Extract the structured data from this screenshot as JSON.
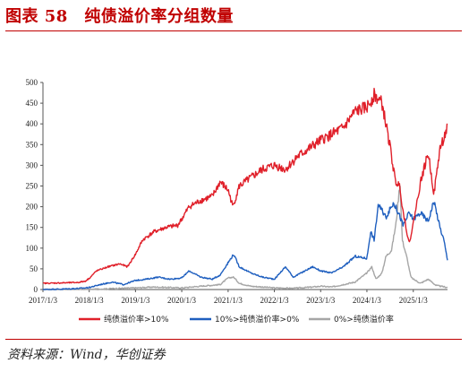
{
  "figure": {
    "title": "图表 58　纯债溢价率分组数量",
    "source": "资料来源：Wind，华创证券"
  },
  "chart_data": {
    "type": "line",
    "title": "",
    "xlabel": "",
    "ylabel": "",
    "ylim": [
      0,
      500
    ],
    "yticks": [
      "0",
      "50",
      "100",
      "150",
      "200",
      "250",
      "300",
      "350",
      "400",
      "450",
      "500"
    ],
    "xlim": [
      "2017-01-03",
      "2025-09-30"
    ],
    "xticks": [
      "2017/1/3",
      "2018/1/3",
      "2019/1/3",
      "2020/1/3",
      "2021/1/3",
      "2022/1/3",
      "2023/1/3",
      "2024/1/3",
      "2025/1/3"
    ],
    "legend_position": "bottom",
    "grid": false,
    "series": [
      {
        "name": "纯债溢价率>10%",
        "color": "#e0202a",
        "points": [
          [
            "2017-01-03",
            15
          ],
          [
            "2017-06-01",
            16
          ],
          [
            "2017-10-01",
            17
          ],
          [
            "2017-12-01",
            20
          ],
          [
            "2018-01-03",
            27
          ],
          [
            "2018-03-01",
            45
          ],
          [
            "2018-06-01",
            55
          ],
          [
            "2018-09-01",
            62
          ],
          [
            "2018-11-01",
            55
          ],
          [
            "2019-01-03",
            85
          ],
          [
            "2019-03-01",
            120
          ],
          [
            "2019-06-01",
            140
          ],
          [
            "2019-09-01",
            150
          ],
          [
            "2019-12-01",
            155
          ],
          [
            "2020-01-03",
            170
          ],
          [
            "2020-03-01",
            200
          ],
          [
            "2020-06-01",
            215
          ],
          [
            "2020-09-01",
            225
          ],
          [
            "2020-11-01",
            260
          ],
          [
            "2021-01-03",
            240
          ],
          [
            "2021-02-10",
            200
          ],
          [
            "2021-04-01",
            250
          ],
          [
            "2021-07-01",
            270
          ],
          [
            "2021-10-01",
            290
          ],
          [
            "2022-01-03",
            300
          ],
          [
            "2022-04-01",
            290
          ],
          [
            "2022-07-01",
            320
          ],
          [
            "2022-10-01",
            340
          ],
          [
            "2023-01-03",
            360
          ],
          [
            "2023-04-01",
            375
          ],
          [
            "2023-07-01",
            390
          ],
          [
            "2023-10-01",
            430
          ],
          [
            "2024-01-03",
            440
          ],
          [
            "2024-03-01",
            470
          ],
          [
            "2024-05-01",
            450
          ],
          [
            "2024-07-01",
            350
          ],
          [
            "2024-08-15",
            260
          ],
          [
            "2024-09-20",
            250
          ],
          [
            "2024-10-08",
            200
          ],
          [
            "2024-11-01",
            160
          ],
          [
            "2024-12-01",
            110
          ],
          [
            "2025-01-03",
            160
          ],
          [
            "2025-03-01",
            260
          ],
          [
            "2025-05-01",
            330
          ],
          [
            "2025-06-15",
            230
          ],
          [
            "2025-08-01",
            340
          ],
          [
            "2025-09-30",
            390
          ]
        ]
      },
      {
        "name": "10%>纯债溢价率>0%",
        "color": "#1f5fbf",
        "points": [
          [
            "2017-01-03",
            0
          ],
          [
            "2017-06-01",
            1
          ],
          [
            "2017-11-01",
            3
          ],
          [
            "2018-01-03",
            5
          ],
          [
            "2018-04-01",
            12
          ],
          [
            "2018-07-01",
            18
          ],
          [
            "2018-10-01",
            12
          ],
          [
            "2019-01-03",
            22
          ],
          [
            "2019-04-01",
            25
          ],
          [
            "2019-07-01",
            30
          ],
          [
            "2019-10-01",
            25
          ],
          [
            "2020-01-03",
            28
          ],
          [
            "2020-03-01",
            45
          ],
          [
            "2020-06-01",
            30
          ],
          [
            "2020-09-01",
            25
          ],
          [
            "2020-11-01",
            35
          ],
          [
            "2021-01-03",
            65
          ],
          [
            "2021-02-15",
            85
          ],
          [
            "2021-04-01",
            55
          ],
          [
            "2021-07-01",
            40
          ],
          [
            "2021-10-01",
            30
          ],
          [
            "2022-01-03",
            25
          ],
          [
            "2022-04-01",
            55
          ],
          [
            "2022-06-01",
            30
          ],
          [
            "2022-09-01",
            45
          ],
          [
            "2022-11-01",
            55
          ],
          [
            "2023-01-03",
            45
          ],
          [
            "2023-04-01",
            40
          ],
          [
            "2023-07-01",
            55
          ],
          [
            "2023-10-01",
            80
          ],
          [
            "2024-01-03",
            75
          ],
          [
            "2024-02-01",
            140
          ],
          [
            "2024-03-01",
            120
          ],
          [
            "2024-04-01",
            205
          ],
          [
            "2024-06-01",
            175
          ],
          [
            "2024-08-01",
            210
          ],
          [
            "2024-09-15",
            180
          ],
          [
            "2024-10-15",
            155
          ],
          [
            "2024-12-01",
            185
          ],
          [
            "2025-01-03",
            170
          ],
          [
            "2025-03-01",
            185
          ],
          [
            "2025-05-01",
            165
          ],
          [
            "2025-06-15",
            215
          ],
          [
            "2025-08-01",
            150
          ],
          [
            "2025-09-01",
            120
          ],
          [
            "2025-09-30",
            70
          ]
        ]
      },
      {
        "name": "0%>纯债溢价率",
        "color": "#a6a6a6",
        "points": [
          [
            "2017-01-03",
            0
          ],
          [
            "2018-01-03",
            0
          ],
          [
            "2018-06-01",
            2
          ],
          [
            "2019-01-03",
            4
          ],
          [
            "2019-06-01",
            6
          ],
          [
            "2020-01-03",
            4
          ],
          [
            "2020-06-01",
            8
          ],
          [
            "2020-11-01",
            12
          ],
          [
            "2021-01-03",
            28
          ],
          [
            "2021-02-15",
            30
          ],
          [
            "2021-04-01",
            15
          ],
          [
            "2021-07-01",
            8
          ],
          [
            "2022-01-03",
            4
          ],
          [
            "2022-06-01",
            3
          ],
          [
            "2022-11-01",
            6
          ],
          [
            "2023-01-03",
            8
          ],
          [
            "2023-04-01",
            6
          ],
          [
            "2023-07-01",
            12
          ],
          [
            "2023-10-01",
            18
          ],
          [
            "2024-01-03",
            40
          ],
          [
            "2024-02-10",
            55
          ],
          [
            "2024-03-15",
            25
          ],
          [
            "2024-05-01",
            40
          ],
          [
            "2024-06-01",
            80
          ],
          [
            "2024-07-15",
            95
          ],
          [
            "2024-08-20",
            160
          ],
          [
            "2024-09-20",
            260
          ],
          [
            "2024-10-08",
            120
          ],
          [
            "2024-11-15",
            75
          ],
          [
            "2024-12-15",
            30
          ],
          [
            "2025-01-03",
            25
          ],
          [
            "2025-03-01",
            15
          ],
          [
            "2025-05-01",
            25
          ],
          [
            "2025-07-01",
            10
          ],
          [
            "2025-09-30",
            5
          ]
        ]
      }
    ]
  }
}
